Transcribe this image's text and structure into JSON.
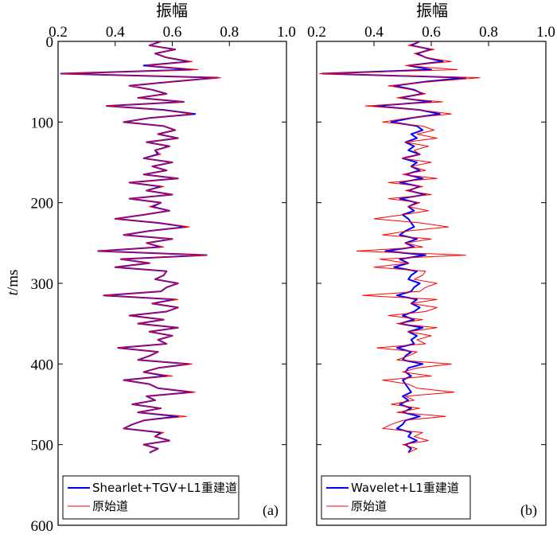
{
  "figure": {
    "ylabel_italic": "t",
    "ylabel_unit": "/ms"
  },
  "chart_data": [
    {
      "id": "a",
      "type": "line",
      "panel_label": "(a)",
      "title": "振幅",
      "xlabel": "振幅",
      "ylabel": "t/ms",
      "xlim": [
        0.2,
        1.0
      ],
      "ylim": [
        0,
        600
      ],
      "y_inverted": true,
      "x_ticks": [
        "0.2",
        "0.4",
        "0.6",
        "0.8",
        "1.0"
      ],
      "y_ticks": [
        "0",
        "100",
        "200",
        "300",
        "400",
        "500",
        "600"
      ],
      "legend": {
        "position": "bottom-left",
        "entries": [
          "Shearlet+TGV+L1重建道",
          "原始道"
        ]
      },
      "series": [
        {
          "name": "Shearlet+TGV+L1重建道",
          "color": "#0000ff",
          "line_width": 2.0,
          "t": [
            0,
            5,
            10,
            15,
            20,
            25,
            30,
            35,
            40,
            45,
            50,
            55,
            60,
            65,
            70,
            75,
            80,
            85,
            90,
            95,
            100,
            105,
            110,
            115,
            120,
            125,
            130,
            135,
            140,
            145,
            150,
            155,
            160,
            165,
            170,
            175,
            180,
            185,
            190,
            195,
            200,
            205,
            210,
            215,
            220,
            225,
            230,
            235,
            240,
            245,
            250,
            255,
            260,
            265,
            270,
            275,
            280,
            285,
            290,
            295,
            300,
            305,
            310,
            315,
            320,
            325,
            330,
            335,
            340,
            345,
            350,
            355,
            360,
            365,
            370,
            375,
            380,
            385,
            390,
            395,
            400,
            405,
            410,
            415,
            420,
            425,
            430,
            435,
            440,
            445,
            450,
            455,
            460,
            465,
            470,
            475,
            480,
            485,
            490,
            495,
            500,
            505,
            510
          ],
          "x": [
            0.56,
            0.52,
            0.61,
            0.54,
            0.58,
            0.66,
            0.5,
            0.67,
            0.21,
            0.76,
            0.6,
            0.45,
            0.53,
            0.58,
            0.48,
            0.64,
            0.37,
            0.57,
            0.68,
            0.52,
            0.43,
            0.57,
            0.61,
            0.55,
            0.62,
            0.51,
            0.59,
            0.54,
            0.55,
            0.5,
            0.6,
            0.53,
            0.58,
            0.5,
            0.62,
            0.45,
            0.56,
            0.51,
            0.6,
            0.45,
            0.56,
            0.53,
            0.59,
            0.5,
            0.4,
            0.55,
            0.65,
            0.52,
            0.43,
            0.6,
            0.51,
            0.56,
            0.34,
            0.72,
            0.42,
            0.52,
            0.4,
            0.58,
            0.57,
            0.54,
            0.62,
            0.58,
            0.56,
            0.36,
            0.61,
            0.53,
            0.62,
            0.58,
            0.45,
            0.57,
            0.48,
            0.62,
            0.52,
            0.6,
            0.55,
            0.58,
            0.41,
            0.55,
            0.52,
            0.48,
            0.66,
            0.55,
            0.5,
            0.58,
            0.43,
            0.52,
            0.55,
            0.67,
            0.51,
            0.54,
            0.46,
            0.56,
            0.48,
            0.62,
            0.5,
            0.46,
            0.43,
            0.56,
            0.54,
            0.59,
            0.5,
            0.55,
            0.52
          ]
        },
        {
          "name": "原始道",
          "color": "#ff0000",
          "line_width": 1.0,
          "t": [
            0,
            5,
            10,
            15,
            20,
            25,
            30,
            35,
            40,
            45,
            50,
            55,
            60,
            65,
            70,
            75,
            80,
            85,
            90,
            95,
            100,
            105,
            110,
            115,
            120,
            125,
            130,
            135,
            140,
            145,
            150,
            155,
            160,
            165,
            170,
            175,
            180,
            185,
            190,
            195,
            200,
            205,
            210,
            215,
            220,
            225,
            230,
            235,
            240,
            245,
            250,
            255,
            260,
            265,
            270,
            275,
            280,
            285,
            290,
            295,
            300,
            305,
            310,
            315,
            320,
            325,
            330,
            335,
            340,
            345,
            350,
            355,
            360,
            365,
            370,
            375,
            380,
            385,
            390,
            395,
            400,
            405,
            410,
            415,
            420,
            425,
            430,
            435,
            440,
            445,
            450,
            455,
            460,
            465,
            470,
            475,
            480,
            485,
            490,
            495,
            500,
            505,
            510
          ],
          "x": [
            0.56,
            0.52,
            0.61,
            0.54,
            0.58,
            0.67,
            0.51,
            0.69,
            0.21,
            0.77,
            0.6,
            0.45,
            0.53,
            0.58,
            0.48,
            0.64,
            0.37,
            0.56,
            0.67,
            0.52,
            0.43,
            0.57,
            0.61,
            0.55,
            0.62,
            0.51,
            0.59,
            0.54,
            0.56,
            0.5,
            0.6,
            0.53,
            0.58,
            0.5,
            0.62,
            0.45,
            0.57,
            0.51,
            0.6,
            0.45,
            0.56,
            0.52,
            0.59,
            0.5,
            0.4,
            0.56,
            0.66,
            0.52,
            0.43,
            0.6,
            0.51,
            0.57,
            0.34,
            0.72,
            0.42,
            0.52,
            0.4,
            0.58,
            0.57,
            0.54,
            0.62,
            0.58,
            0.56,
            0.36,
            0.62,
            0.53,
            0.62,
            0.58,
            0.45,
            0.57,
            0.48,
            0.62,
            0.52,
            0.6,
            0.55,
            0.58,
            0.41,
            0.55,
            0.52,
            0.48,
            0.67,
            0.55,
            0.5,
            0.6,
            0.43,
            0.52,
            0.55,
            0.68,
            0.51,
            0.54,
            0.46,
            0.56,
            0.48,
            0.65,
            0.5,
            0.46,
            0.43,
            0.57,
            0.54,
            0.59,
            0.5,
            0.55,
            0.52
          ]
        }
      ]
    },
    {
      "id": "b",
      "type": "line",
      "panel_label": "(b)",
      "title": "振幅",
      "xlabel": "振幅",
      "ylabel": "t/ms",
      "xlim": [
        0.2,
        1.0
      ],
      "ylim": [
        0,
        600
      ],
      "y_inverted": true,
      "x_ticks": [
        "0.2",
        "0.4",
        "0.6",
        "0.8",
        "1.0"
      ],
      "y_ticks": [
        "0",
        "100",
        "200",
        "300",
        "400",
        "500",
        "600"
      ],
      "legend": {
        "position": "bottom-left",
        "entries": [
          "Wavelet+L1重建道",
          "原始道"
        ]
      },
      "series": [
        {
          "name": "Wavelet+L1重建道",
          "color": "#0000ff",
          "line_width": 2.0,
          "t": [
            0,
            5,
            10,
            15,
            20,
            25,
            30,
            35,
            40,
            45,
            50,
            55,
            60,
            65,
            70,
            75,
            80,
            85,
            90,
            95,
            100,
            105,
            110,
            115,
            120,
            125,
            130,
            135,
            140,
            145,
            150,
            155,
            160,
            165,
            170,
            175,
            180,
            185,
            190,
            195,
            200,
            205,
            210,
            215,
            220,
            225,
            230,
            235,
            240,
            245,
            250,
            255,
            260,
            265,
            270,
            275,
            280,
            285,
            290,
            295,
            300,
            305,
            310,
            315,
            320,
            325,
            330,
            335,
            340,
            345,
            350,
            355,
            360,
            365,
            370,
            375,
            380,
            385,
            390,
            395,
            400,
            405,
            410,
            415,
            420,
            425,
            430,
            435,
            440,
            445,
            450,
            455,
            460,
            465,
            470,
            475,
            480,
            485,
            490,
            495,
            500,
            505,
            510
          ],
          "x": [
            0.56,
            0.53,
            0.6,
            0.55,
            0.58,
            0.64,
            0.52,
            0.6,
            0.22,
            0.72,
            0.58,
            0.47,
            0.54,
            0.57,
            0.49,
            0.6,
            0.4,
            0.56,
            0.63,
            0.53,
            0.46,
            0.55,
            0.57,
            0.53,
            0.55,
            0.51,
            0.54,
            0.52,
            0.56,
            0.5,
            0.55,
            0.53,
            0.56,
            0.51,
            0.57,
            0.49,
            0.56,
            0.52,
            0.58,
            0.49,
            0.55,
            0.52,
            0.54,
            0.5,
            0.52,
            0.53,
            0.54,
            0.51,
            0.49,
            0.55,
            0.51,
            0.54,
            0.44,
            0.58,
            0.49,
            0.52,
            0.47,
            0.55,
            0.53,
            0.52,
            0.56,
            0.54,
            0.53,
            0.48,
            0.55,
            0.53,
            0.56,
            0.54,
            0.5,
            0.54,
            0.49,
            0.57,
            0.52,
            0.55,
            0.53,
            0.54,
            0.48,
            0.53,
            0.51,
            0.5,
            0.57,
            0.52,
            0.51,
            0.53,
            0.5,
            0.51,
            0.52,
            0.53,
            0.5,
            0.52,
            0.49,
            0.53,
            0.5,
            0.56,
            0.51,
            0.5,
            0.48,
            0.53,
            0.52,
            0.55,
            0.51,
            0.53,
            0.52
          ]
        },
        {
          "name": "原始道",
          "color": "#ff0000",
          "line_width": 1.0,
          "t": [
            0,
            5,
            10,
            15,
            20,
            25,
            30,
            35,
            40,
            45,
            50,
            55,
            60,
            65,
            70,
            75,
            80,
            85,
            90,
            95,
            100,
            105,
            110,
            115,
            120,
            125,
            130,
            135,
            140,
            145,
            150,
            155,
            160,
            165,
            170,
            175,
            180,
            185,
            190,
            195,
            200,
            205,
            210,
            215,
            220,
            225,
            230,
            235,
            240,
            245,
            250,
            255,
            260,
            265,
            270,
            275,
            280,
            285,
            290,
            295,
            300,
            305,
            310,
            315,
            320,
            325,
            330,
            335,
            340,
            345,
            350,
            355,
            360,
            365,
            370,
            375,
            380,
            385,
            390,
            395,
            400,
            405,
            410,
            415,
            420,
            425,
            430,
            435,
            440,
            445,
            450,
            455,
            460,
            465,
            470,
            475,
            480,
            485,
            490,
            495,
            500,
            505,
            510
          ],
          "x": [
            0.56,
            0.52,
            0.61,
            0.54,
            0.58,
            0.67,
            0.51,
            0.69,
            0.21,
            0.77,
            0.6,
            0.45,
            0.53,
            0.58,
            0.48,
            0.64,
            0.37,
            0.56,
            0.67,
            0.52,
            0.43,
            0.57,
            0.61,
            0.55,
            0.62,
            0.51,
            0.59,
            0.54,
            0.56,
            0.5,
            0.6,
            0.53,
            0.58,
            0.5,
            0.62,
            0.45,
            0.57,
            0.51,
            0.6,
            0.45,
            0.56,
            0.52,
            0.59,
            0.5,
            0.4,
            0.56,
            0.66,
            0.52,
            0.43,
            0.6,
            0.51,
            0.57,
            0.34,
            0.72,
            0.42,
            0.52,
            0.4,
            0.58,
            0.57,
            0.54,
            0.62,
            0.58,
            0.56,
            0.36,
            0.62,
            0.53,
            0.62,
            0.58,
            0.45,
            0.57,
            0.48,
            0.62,
            0.52,
            0.6,
            0.55,
            0.58,
            0.41,
            0.55,
            0.52,
            0.48,
            0.67,
            0.55,
            0.5,
            0.6,
            0.43,
            0.52,
            0.55,
            0.68,
            0.51,
            0.54,
            0.46,
            0.56,
            0.48,
            0.65,
            0.5,
            0.46,
            0.43,
            0.57,
            0.54,
            0.59,
            0.5,
            0.55,
            0.52
          ]
        }
      ]
    }
  ]
}
